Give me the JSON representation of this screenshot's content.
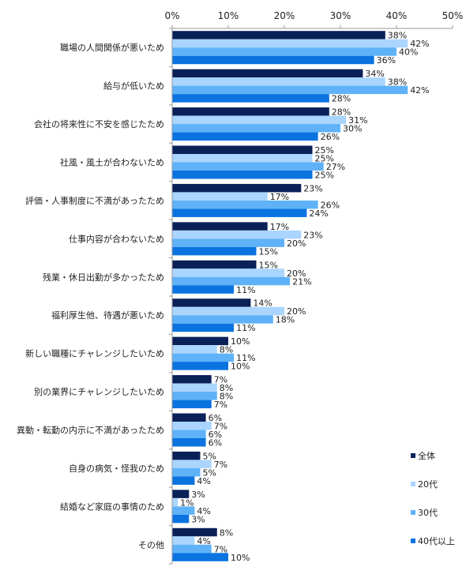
{
  "chart_data": {
    "type": "bar",
    "orientation": "horizontal",
    "xlim": [
      0,
      50
    ],
    "x_ticks": [
      "0%",
      "10%",
      "20%",
      "30%",
      "40%",
      "50%"
    ],
    "tick_values": [
      0,
      10,
      20,
      30,
      40,
      50
    ],
    "value_suffix": "%",
    "grid": false,
    "legend_position": "right",
    "categories": [
      "職場の人間関係が悪いため",
      "給与が低いため",
      "会社の将来性に不安を感じたため",
      "社風・風土が合わないため",
      "評価・人事制度に不満があったため",
      "仕事内容が合わないため",
      "残業・休日出勤が多かったため",
      "福利厚生他、待遇が悪いため",
      "新しい職種にチャレンジしたいため",
      "別の業界にチャレンジしたいため",
      "異動・転勤の内示に不満があったため",
      "自身の病気・怪我のため",
      "結婚など家庭の事情のため",
      "その他"
    ],
    "series": [
      {
        "name": "全体",
        "color": "#0a2158",
        "values": [
          38,
          34,
          28,
          25,
          23,
          17,
          15,
          14,
          10,
          7,
          6,
          5,
          3,
          8
        ]
      },
      {
        "name": "20代",
        "color": "#a9d5ff",
        "values": [
          42,
          38,
          31,
          25,
          17,
          23,
          20,
          20,
          8,
          8,
          7,
          7,
          1,
          4
        ]
      },
      {
        "name": "30代",
        "color": "#5fb2f7",
        "values": [
          40,
          42,
          30,
          27,
          26,
          20,
          21,
          18,
          11,
          8,
          6,
          5,
          4,
          7
        ]
      },
      {
        "name": "40代以上",
        "color": "#0a73e0",
        "values": [
          36,
          28,
          26,
          25,
          24,
          15,
          11,
          11,
          10,
          7,
          6,
          4,
          3,
          10
        ]
      }
    ]
  }
}
